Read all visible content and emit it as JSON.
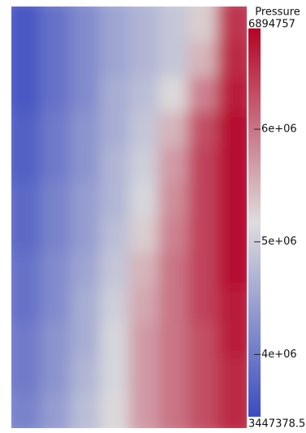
{
  "chart_data": {
    "type": "heatmap",
    "colorbar_title": "Pressure",
    "colormap": [
      "#3b4cc0",
      "#dddddd",
      "#b40426"
    ],
    "clim": [
      3447378.5,
      6894757
    ],
    "cticks": [
      {
        "value": 4000000,
        "label": "4e+06"
      },
      {
        "value": 5000000,
        "label": "5e+06"
      },
      {
        "value": 6000000,
        "label": "6e+06"
      }
    ],
    "z": [
      [
        3600000,
        3900000,
        4200000,
        4500000,
        4700000,
        4900000,
        5300000,
        6500000
      ],
      [
        3600000,
        3900000,
        4200000,
        4500000,
        4700000,
        4900000,
        5500000,
        6600000
      ],
      [
        3600000,
        3900000,
        4200000,
        4600000,
        4800000,
        5200000,
        5900000,
        6700000
      ],
      [
        3700000,
        4000000,
        4300000,
        4600000,
        4900000,
        5500000,
        6300000,
        6800000
      ],
      [
        3700000,
        4000000,
        4300000,
        4700000,
        5000000,
        5700000,
        6400000,
        6800000
      ],
      [
        3800000,
        4100000,
        4400000,
        4700000,
        5100000,
        5800000,
        6400000,
        6800000
      ],
      [
        3800000,
        4100000,
        4400000,
        4800000,
        5300000,
        5900000,
        6400000,
        6800000
      ],
      [
        3900000,
        4200000,
        4500000,
        4900000,
        5500000,
        6000000,
        6400000,
        6800000
      ],
      [
        3900000,
        4200000,
        4600000,
        5000000,
        5600000,
        6000000,
        6400000,
        6700000
      ],
      [
        4000000,
        4300000,
        4600000,
        5100000,
        5700000,
        6000000,
        6300000,
        6700000
      ],
      [
        4000000,
        4300000,
        4700000,
        5100000,
        5700000,
        6000000,
        6300000,
        6600000
      ],
      [
        4100000,
        4400000,
        4800000,
        5200000,
        5700000,
        6000000,
        6300000,
        6600000
      ]
    ]
  }
}
